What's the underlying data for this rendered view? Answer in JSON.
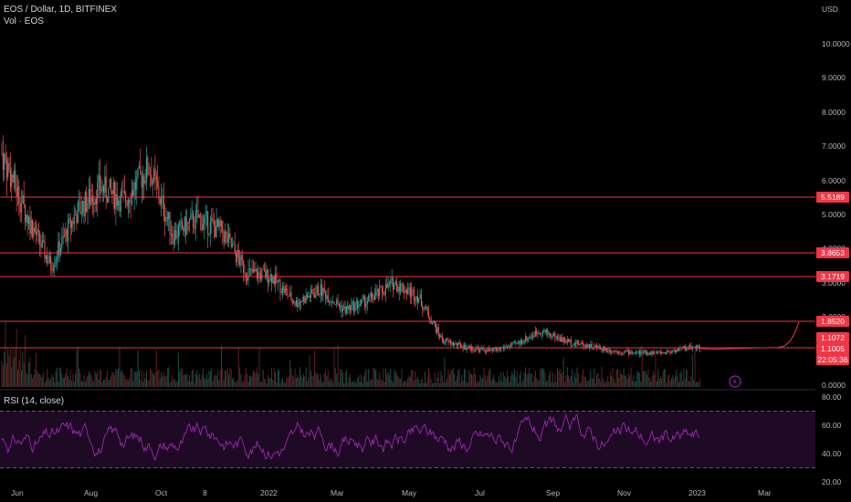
{
  "header": {
    "symbol_line": "EOS / Dollar, 1D, BITFINEX",
    "volume_line": "Vol · EOS",
    "currency": "USD"
  },
  "price_axis": {
    "ticks": [
      "10.0000",
      "9.0000",
      "8.0000",
      "7.0000",
      "6.0000",
      "5.0000",
      "4.0000",
      "3.0000",
      "2.0000",
      "0.0000"
    ]
  },
  "levels": {
    "l1": "5.5189",
    "l2": "3.8653",
    "l3": "3.1719",
    "l4": "1.8520",
    "l5": "1.1072",
    "l6": "1.1005",
    "countdown": "22:05:36"
  },
  "rsi": {
    "label": "RSI (14, close)",
    "ticks": [
      "80.00",
      "60.00",
      "40.00",
      "20.00"
    ]
  },
  "time_axis": [
    "Jun",
    "Aug",
    "Oct",
    "8",
    "2022",
    "Mar",
    "May",
    "Jul",
    "Sep",
    "Nov",
    "2023",
    "Mar"
  ],
  "colors": {
    "up": "#26a69a",
    "down": "#ef5350",
    "level_line": "#f23645",
    "rsi_line": "#9c27b0",
    "rsi_band": "#1e0a24"
  },
  "chart_data": {
    "type": "candlestick",
    "symbol": "EOS / Dollar",
    "interval": "1D",
    "exchange": "BITFINEX",
    "approx_close_path": [
      {
        "x": "Jun",
        "y": 6.8
      },
      {
        "x": "Jun",
        "y": 5.0
      },
      {
        "x": "Jul",
        "y": 3.5
      },
      {
        "x": "Aug",
        "y": 5.0
      },
      {
        "x": "Aug",
        "y": 5.8
      },
      {
        "x": "Sep",
        "y": 5.4
      },
      {
        "x": "Sep",
        "y": 6.4
      },
      {
        "x": "Oct",
        "y": 4.4
      },
      {
        "x": "Oct",
        "y": 4.9
      },
      {
        "x": "8",
        "y": 4.5
      },
      {
        "x": "Dec",
        "y": 3.3
      },
      {
        "x": "2022",
        "y": 3.2
      },
      {
        "x": "2022",
        "y": 2.4
      },
      {
        "x": "Feb",
        "y": 2.8
      },
      {
        "x": "Mar",
        "y": 2.2
      },
      {
        "x": "Mar",
        "y": 2.5
      },
      {
        "x": "Apr",
        "y": 3.0
      },
      {
        "x": "Apr",
        "y": 2.6
      },
      {
        "x": "May",
        "y": 1.3
      },
      {
        "x": "Jun",
        "y": 1.1
      },
      {
        "x": "Jul",
        "y": 1.0
      },
      {
        "x": "Aug",
        "y": 1.2
      },
      {
        "x": "Sep",
        "y": 1.6
      },
      {
        "x": "Sep",
        "y": 1.3
      },
      {
        "x": "Oct",
        "y": 1.15
      },
      {
        "x": "Nov",
        "y": 1.0
      },
      {
        "x": "Dec",
        "y": 0.95
      },
      {
        "x": "2023",
        "y": 0.95
      },
      {
        "x": "Feb",
        "y": 1.1
      },
      {
        "x": "Mar",
        "y": 1.15
      },
      {
        "x": "Mar",
        "y": 1.85
      }
    ]
  }
}
